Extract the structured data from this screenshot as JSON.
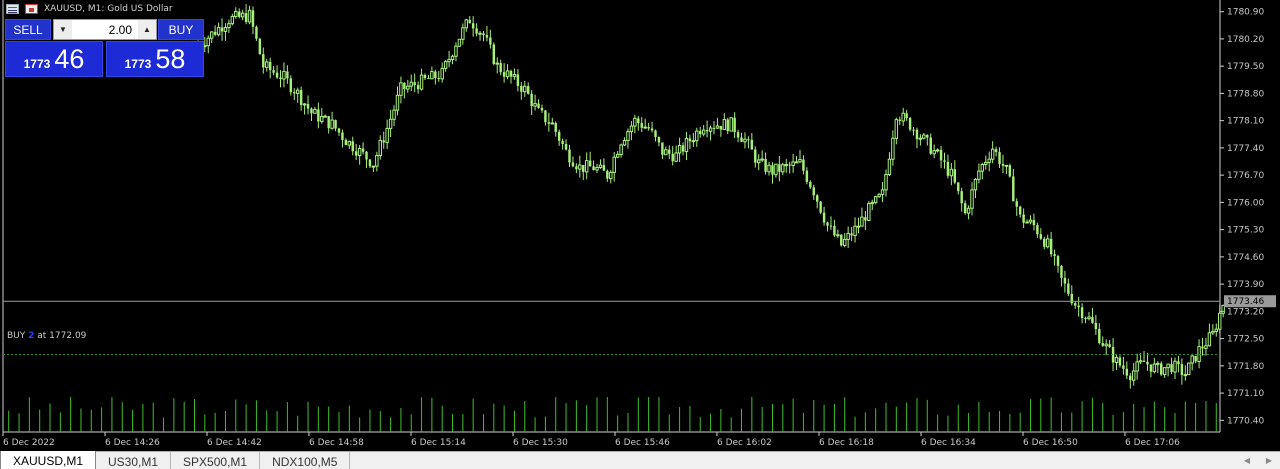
{
  "window": {
    "title": "XAUUSD, M1:  Gold US Dollar"
  },
  "trade_panel": {
    "sell_label": "SELL",
    "buy_label": "BUY",
    "volume": "2.00",
    "sell_price_small": "1773",
    "sell_price_big": "46",
    "buy_price_small": "1773",
    "buy_price_big": "58"
  },
  "order_line": {
    "prefix": "BUY",
    "volume": "2",
    "suffix": "at 1772.09",
    "price": 1772.09
  },
  "bid_price_label": "1773.46",
  "tabs": [
    {
      "label": "XAUUSD,M1",
      "active": true
    },
    {
      "label": "US30,M1",
      "active": false
    },
    {
      "label": "SPX500,M1",
      "active": false
    },
    {
      "label": "NDX100,M5",
      "active": false
    }
  ],
  "colors": {
    "background": "#000000",
    "candle": "#a6f07c",
    "volume": "#3fbf2a",
    "grid_text": "#c8c8c8",
    "panel_blue": "#1d2bd6",
    "order_line": "#2e8b2e"
  },
  "chart_data": {
    "type": "candlestick",
    "symbol": "XAUUSD",
    "timeframe": "M1",
    "ylim": [
      1770.1,
      1781.2
    ],
    "y_ticks": [
      "1780.90",
      "1780.20",
      "1779.50",
      "1778.80",
      "1778.10",
      "1777.40",
      "1776.70",
      "1776.00",
      "1775.30",
      "1774.60",
      "1773.90",
      "1773.20",
      "1772.50",
      "1771.80",
      "1771.10",
      "1770.40"
    ],
    "x_ticks": [
      "6 Dec 2022",
      "6 Dec 14:26",
      "6 Dec 14:42",
      "6 Dec 14:58",
      "6 Dec 15:14",
      "6 Dec 15:30",
      "6 Dec 15:46",
      "6 Dec 16:02",
      "6 Dec 16:18",
      "6 Dec 16:34",
      "6 Dec 16:50",
      "6 Dec 17:06"
    ],
    "bid_line": 1773.46,
    "close_path": [
      [
        0,
        1779.2
      ],
      [
        10,
        1779.3
      ],
      [
        20,
        1779.5
      ],
      [
        26,
        1779.8
      ],
      [
        30,
        1779.2
      ],
      [
        36,
        1779.0
      ],
      [
        42,
        1779.2
      ],
      [
        48,
        1779.5
      ],
      [
        52,
        1779.8
      ],
      [
        56,
        1780.1
      ],
      [
        60,
        1780.4
      ],
      [
        64,
        1780.7
      ],
      [
        70,
        1780.8
      ],
      [
        74,
        1779.5
      ],
      [
        80,
        1779.2
      ],
      [
        84,
        1778.8
      ],
      [
        88,
        1778.3
      ],
      [
        94,
        1778.0
      ],
      [
        98,
        1777.6
      ],
      [
        102,
        1777.3
      ],
      [
        106,
        1777.0
      ],
      [
        110,
        1777.9
      ],
      [
        114,
        1778.9
      ],
      [
        120,
        1779.1
      ],
      [
        126,
        1779.3
      ],
      [
        130,
        1780.1
      ],
      [
        134,
        1780.7
      ],
      [
        138,
        1780.3
      ],
      [
        142,
        1779.5
      ],
      [
        146,
        1779.2
      ],
      [
        150,
        1778.9
      ],
      [
        154,
        1778.3
      ],
      [
        158,
        1778.0
      ],
      [
        162,
        1777.3
      ],
      [
        166,
        1776.9
      ],
      [
        170,
        1776.9
      ],
      [
        174,
        1776.7
      ],
      [
        178,
        1777.6
      ],
      [
        182,
        1778.1
      ],
      [
        186,
        1777.9
      ],
      [
        190,
        1777.3
      ],
      [
        194,
        1777.2
      ],
      [
        198,
        1777.6
      ],
      [
        202,
        1778.0
      ],
      [
        206,
        1778.0
      ],
      [
        210,
        1778.0
      ],
      [
        214,
        1777.6
      ],
      [
        218,
        1777.0
      ],
      [
        222,
        1776.8
      ],
      [
        226,
        1776.9
      ],
      [
        230,
        1777.0
      ],
      [
        234,
        1776.3
      ],
      [
        238,
        1775.4
      ],
      [
        242,
        1774.9
      ],
      [
        246,
        1775.3
      ],
      [
        250,
        1775.8
      ],
      [
        254,
        1776.2
      ],
      [
        258,
        1778.3
      ],
      [
        262,
        1778.0
      ],
      [
        266,
        1777.6
      ],
      [
        270,
        1777.2
      ],
      [
        274,
        1776.7
      ],
      [
        278,
        1775.7
      ],
      [
        282,
        1776.8
      ],
      [
        286,
        1777.4
      ],
      [
        290,
        1776.8
      ],
      [
        294,
        1775.6
      ],
      [
        298,
        1775.4
      ],
      [
        302,
        1774.9
      ],
      [
        306,
        1774.0
      ],
      [
        310,
        1773.4
      ],
      [
        314,
        1773.0
      ],
      [
        318,
        1772.4
      ],
      [
        322,
        1771.9
      ],
      [
        326,
        1771.6
      ],
      [
        330,
        1771.9
      ],
      [
        334,
        1771.7
      ],
      [
        338,
        1771.8
      ],
      [
        342,
        1771.6
      ],
      [
        346,
        1772.2
      ],
      [
        350,
        1772.6
      ],
      [
        353,
        1773.4
      ]
    ]
  }
}
